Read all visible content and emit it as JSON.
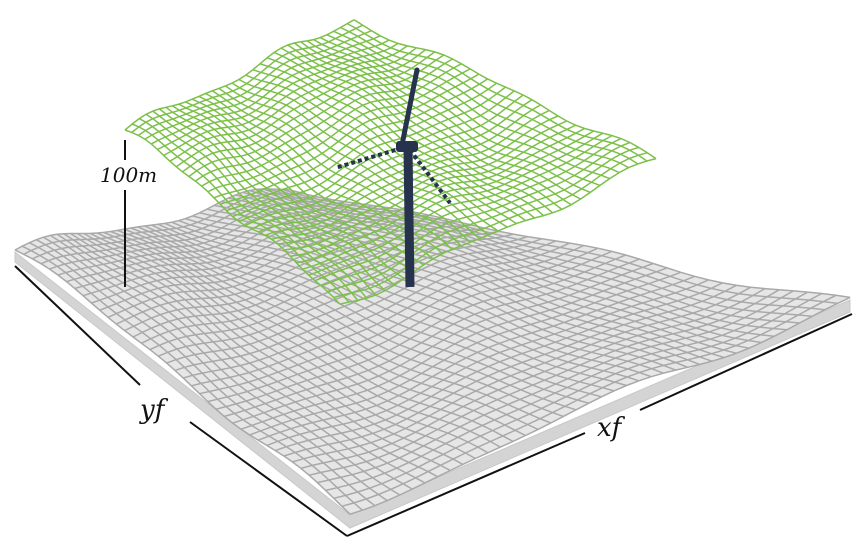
{
  "labels": {
    "scale": "100m",
    "y_axis": "yf",
    "x_axis": "xf"
  }
}
